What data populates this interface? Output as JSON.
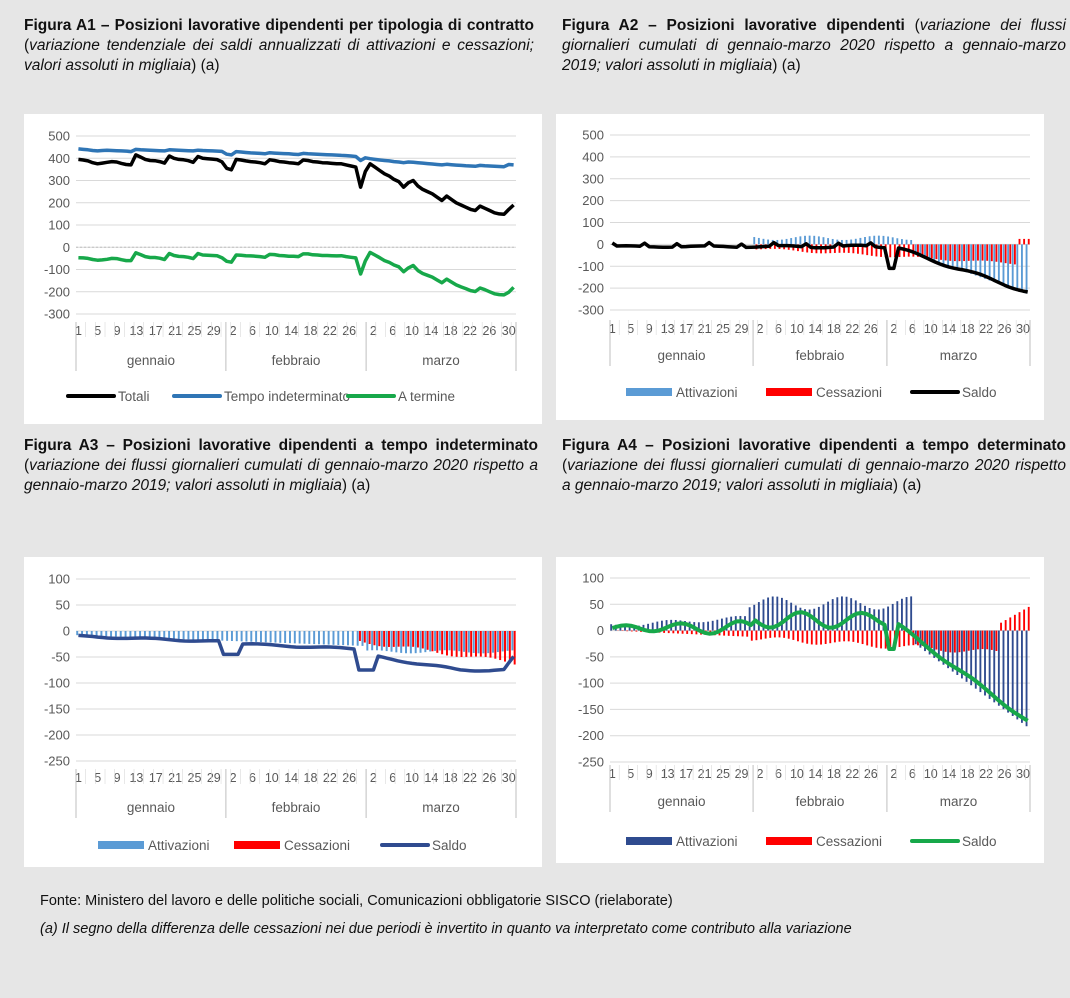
{
  "colors": {
    "black": "#000000",
    "blue": "#2f75b5",
    "green": "#17a84a",
    "light_blue": "#5b9bd5",
    "red": "#ff0000",
    "dark_blue": "#2f4b8f"
  },
  "captions": {
    "a1": {
      "bold": "Figura A1 – Posizioni lavorative dipendenti per tipologia di contratto",
      "italic": "variazione tendenziale dei saldi annualizzati di attivazioni e cessazioni; valori assoluti in migliaia",
      "tail": "(a)"
    },
    "a2": {
      "bold": "Figura A2 – Posizioni lavorative dipendenti",
      "italic": "variazione dei flussi giornalieri cumulati di gennaio-marzo 2020 rispetto a gennaio-marzo 2019; valori assoluti in migliaia",
      "tail": "(a)"
    },
    "a3": {
      "bold": "Figura A3 – Posizioni lavorative dipendenti a tempo indeterminato",
      "italic": "variazione dei flussi giornalieri cumulati di gennaio-marzo 2020 rispetto a gennaio-marzo 2019; valori assoluti in migliaia",
      "tail": "(a)"
    },
    "a4": {
      "bold": "Figura A4 – Posizioni lavorative dipendenti a tempo determinato",
      "italic": "variazione dei flussi giornalieri cumulati di gennaio-marzo 2020 rispetto a gennaio-marzo 2019; valori assoluti in migliaia",
      "tail": "(a)"
    }
  },
  "day_ticks": [
    "1",
    "5",
    "9",
    "13",
    "17",
    "21",
    "25",
    "29"
  ],
  "day_ticks_feb": [
    "2",
    "6",
    "10",
    "14",
    "18",
    "22",
    "26"
  ],
  "day_ticks_mar": [
    "2",
    "6",
    "10",
    "14",
    "18",
    "22",
    "26",
    "30"
  ],
  "months": [
    "gennaio",
    "febbraio",
    "marzo"
  ],
  "footer": {
    "source": "Fonte: Ministero del lavoro e delle politiche sociali, Comunicazioni obbligatorie SISCO (rielaborate)",
    "note": "(a) Il segno della differenza delle cessazioni nei due periodi è invertito in quanto va interpretato come contributo alla variazione"
  },
  "chart_data": [
    {
      "type": "line",
      "id": "a1",
      "ylim": [
        -300,
        500
      ],
      "yticks": [
        "500",
        "400",
        "300",
        "200",
        "100",
        "0",
        "-100",
        "-200",
        "-300"
      ],
      "series": [
        {
          "name": "Totali",
          "color": "#000000",
          "values": [
            395,
            392,
            388,
            380,
            375,
            378,
            382,
            385,
            383,
            377,
            372,
            370,
            415,
            405,
            395,
            390,
            389,
            385,
            378,
            410,
            400,
            395,
            393,
            389,
            382,
            408,
            400,
            398,
            396,
            394,
            384,
            355,
            348,
            395,
            392,
            388,
            385,
            383,
            380,
            375,
            393,
            390,
            385,
            383,
            380,
            378,
            375,
            392,
            390,
            385,
            383,
            380,
            379,
            377,
            375,
            375,
            370,
            365,
            360,
            270,
            340,
            375,
            360,
            345,
            330,
            320,
            305,
            295,
            270,
            290,
            300,
            275,
            260,
            250,
            240,
            225,
            210,
            230,
            215,
            200,
            190,
            180,
            170,
            165,
            185,
            175,
            165,
            155,
            150,
            148,
            170,
            190
          ]
        },
        {
          "name": "Tempo indeterminato",
          "color": "#2f75b5",
          "values": [
            442,
            440,
            438,
            435,
            433,
            435,
            436,
            435,
            434,
            433,
            432,
            430,
            440,
            438,
            437,
            436,
            435,
            434,
            433,
            438,
            437,
            436,
            435,
            434,
            433,
            436,
            435,
            434,
            433,
            432,
            431,
            418,
            415,
            430,
            428,
            426,
            424,
            423,
            422,
            420,
            425,
            423,
            422,
            421,
            420,
            418,
            417,
            422,
            420,
            419,
            418,
            417,
            416,
            415,
            414,
            413,
            412,
            410,
            408,
            390,
            402,
            398,
            395,
            392,
            390,
            388,
            385,
            383,
            380,
            383,
            382,
            380,
            378,
            376,
            374,
            372,
            370,
            373,
            371,
            369,
            368,
            366,
            365,
            364,
            368,
            366,
            365,
            364,
            363,
            362,
            372,
            370
          ]
        },
        {
          "name": "A termine",
          "color": "#17a84a",
          "values": [
            -47,
            -48,
            -50,
            -55,
            -58,
            -57,
            -54,
            -50,
            -51,
            -56,
            -60,
            -60,
            -25,
            -33,
            -42,
            -46,
            -46,
            -49,
            -55,
            -28,
            -37,
            -41,
            -42,
            -45,
            -51,
            -28,
            -35,
            -36,
            -37,
            -38,
            -47,
            -63,
            -67,
            -35,
            -36,
            -38,
            -39,
            -40,
            -42,
            -45,
            -32,
            -33,
            -37,
            -38,
            -40,
            -40,
            -42,
            -30,
            -30,
            -34,
            -35,
            -37,
            -37,
            -38,
            -39,
            -38,
            -42,
            -45,
            -48,
            -120,
            -62,
            -23,
            -35,
            -47,
            -60,
            -68,
            -80,
            -88,
            -110,
            -93,
            -82,
            -105,
            -118,
            -126,
            -134,
            -147,
            -160,
            -143,
            -156,
            -169,
            -178,
            -186,
            -195,
            -199,
            -183,
            -191,
            -200,
            -209,
            -213,
            -214,
            -202,
            -180
          ]
        }
      ]
    },
    {
      "type": "bar",
      "id": "a2",
      "ylim": [
        -300,
        500
      ],
      "yticks": [
        "500",
        "400",
        "300",
        "200",
        "100",
        "0",
        "-100",
        "-200",
        "-300"
      ],
      "series": [
        {
          "name": "Attivazioni",
          "color": "#5b9bd5"
        },
        {
          "name": "Cessazioni",
          "color": "#ff0000"
        },
        {
          "name": "Saldo",
          "color": "#000000"
        }
      ]
    },
    {
      "type": "bar",
      "id": "a3",
      "ylim": [
        -250,
        100
      ],
      "yticks": [
        "100",
        "50",
        "0",
        "-50",
        "-100",
        "-150",
        "-200",
        "-250"
      ],
      "series": [
        {
          "name": "Attivazioni",
          "color": "#5b9bd5"
        },
        {
          "name": "Cessazioni",
          "color": "#ff0000"
        },
        {
          "name": "Saldo",
          "color": "#2f4b8f"
        }
      ]
    },
    {
      "type": "bar",
      "id": "a4",
      "ylim": [
        -250,
        100
      ],
      "yticks": [
        "100",
        "50",
        "0",
        "-50",
        "-100",
        "-150",
        "-200",
        "-250"
      ],
      "series": [
        {
          "name": "Attivazioni",
          "color": "#2f4b8f"
        },
        {
          "name": "Cessazioni",
          "color": "#ff0000"
        },
        {
          "name": "Saldo",
          "color": "#17a84a"
        }
      ]
    }
  ]
}
